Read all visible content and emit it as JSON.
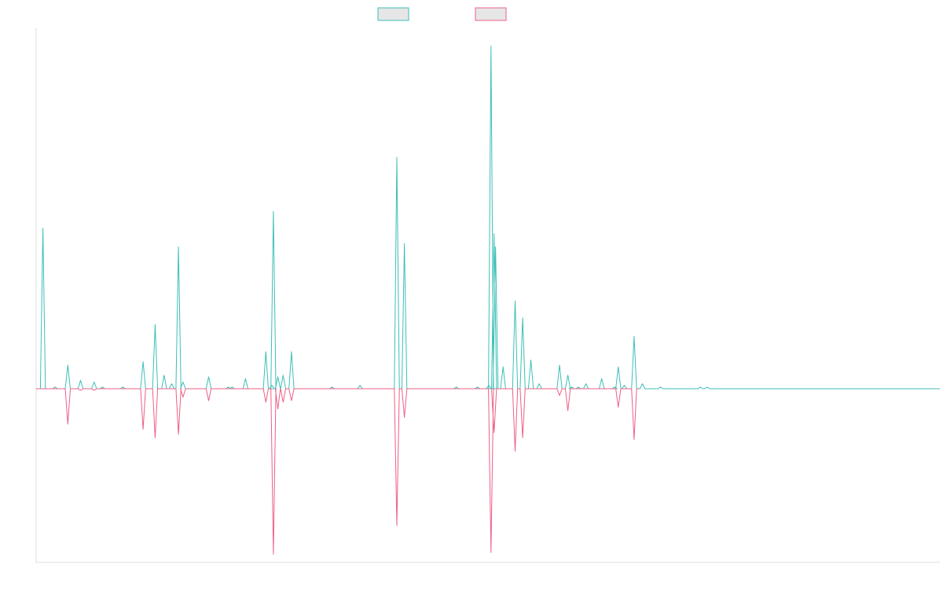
{
  "chart_data": {
    "type": "line",
    "title": "",
    "xlabel": "",
    "ylabel": "",
    "legend_position": "top-center",
    "grid": false,
    "xlim": [
      0,
      1200
    ],
    "ylim": [
      -100,
      100
    ],
    "colors": {
      "teal": "#3dbfb8",
      "pink": "#ee5f85",
      "legend_fill": "#e6e6e6",
      "axis": "#dddddd"
    },
    "series": [
      {
        "color": "#3dbfb8",
        "direction": "up",
        "peaks": [
          [
            9,
            95
          ],
          [
            25,
            1
          ],
          [
            42,
            14
          ],
          [
            59,
            5
          ],
          [
            77,
            4
          ],
          [
            88,
            1
          ],
          [
            115,
            1
          ],
          [
            142,
            16
          ],
          [
            158,
            38
          ],
          [
            170,
            8
          ],
          [
            180,
            3
          ],
          [
            189,
            84
          ],
          [
            195,
            4
          ],
          [
            229,
            7
          ],
          [
            255,
            1
          ],
          [
            260,
            1
          ],
          [
            278,
            6
          ],
          [
            305,
            22
          ],
          [
            313,
            2
          ],
          [
            315,
            105
          ],
          [
            321,
            7
          ],
          [
            328,
            8
          ],
          [
            339,
            22
          ],
          [
            393,
            1
          ],
          [
            430,
            2
          ],
          [
            479,
            137
          ],
          [
            489,
            86
          ],
          [
            558,
            1
          ],
          [
            586,
            1
          ],
          [
            601,
            2
          ],
          [
            604,
            203
          ],
          [
            608,
            92
          ],
          [
            610,
            84
          ],
          [
            620,
            13
          ],
          [
            636,
            52
          ],
          [
            646,
            42
          ],
          [
            657,
            17
          ],
          [
            668,
            3
          ],
          [
            695,
            14
          ],
          [
            706,
            8
          ],
          [
            711,
            1
          ],
          [
            720,
            1
          ],
          [
            730,
            3
          ],
          [
            751,
            6
          ],
          [
            768,
            1
          ],
          [
            773,
            13
          ],
          [
            781,
            2
          ],
          [
            794,
            31
          ],
          [
            805,
            3
          ],
          [
            829,
            1
          ],
          [
            882,
            1
          ],
          [
            891,
            1
          ]
        ]
      },
      {
        "color": "#ee5f85",
        "direction": "down",
        "peaks": [
          [
            42,
            21
          ],
          [
            59,
            1
          ],
          [
            77,
            1
          ],
          [
            142,
            24
          ],
          [
            158,
            29
          ],
          [
            189,
            27
          ],
          [
            195,
            5
          ],
          [
            229,
            7
          ],
          [
            305,
            8
          ],
          [
            315,
            98
          ],
          [
            321,
            12
          ],
          [
            328,
            8
          ],
          [
            339,
            7
          ],
          [
            479,
            81
          ],
          [
            489,
            17
          ],
          [
            604,
            97
          ],
          [
            608,
            26
          ],
          [
            636,
            37
          ],
          [
            646,
            29
          ],
          [
            695,
            4
          ],
          [
            706,
            13
          ],
          [
            773,
            11
          ],
          [
            794,
            30
          ]
        ]
      }
    ]
  }
}
